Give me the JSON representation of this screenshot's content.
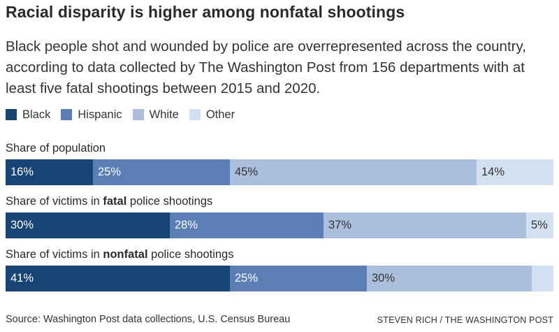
{
  "title": "Racial disparity is higher among nonfatal shootings",
  "subtitle": "Black people shot and wounded by police are overrepresented across the country, according to data collected by The Washington Post from 156 departments with at least five fatal shootings between 2015 and 2020.",
  "footer": {
    "source": "Source: Washington Post data collections, U.S. Census Bureau",
    "credit": "STEVEN RICH / THE WASHINGTON POST"
  },
  "chart_data": {
    "type": "bar",
    "orientation": "horizontal-stacked-100",
    "title": "Racial disparity is higher among nonfatal shootings",
    "xlabel": "",
    "ylabel": "",
    "xlim": [
      0,
      100
    ],
    "grid": false,
    "legend_position": "top-left",
    "legend": [
      {
        "name": "Black",
        "color": "#164574"
      },
      {
        "name": "Hispanic",
        "color": "#5b7fb4"
      },
      {
        "name": "White",
        "color": "#abbfdd"
      },
      {
        "name": "Other",
        "color": "#d2e0f0"
      }
    ],
    "categories": [
      {
        "label_pre": "Share of population",
        "label_bold": "",
        "label_post": ""
      },
      {
        "label_pre": "Share of victims in ",
        "label_bold": "fatal",
        "label_post": " police shootings"
      },
      {
        "label_pre": "Share of victims in ",
        "label_bold": "nonfatal",
        "label_post": " police shootings"
      }
    ],
    "series": [
      {
        "name": "Black",
        "values": [
          16,
          30,
          41
        ],
        "labels": [
          "16%",
          "30%",
          "41%"
        ]
      },
      {
        "name": "Hispanic",
        "values": [
          25,
          28,
          25
        ],
        "labels": [
          "25%",
          "28%",
          "25%"
        ]
      },
      {
        "name": "White",
        "values": [
          45,
          37,
          30
        ],
        "labels": [
          "45%",
          "37%",
          "30%"
        ]
      },
      {
        "name": "Other",
        "values": [
          14,
          5,
          4
        ],
        "labels": [
          "14%",
          "5%",
          ""
        ]
      }
    ],
    "label_colors": {
      "Black": "#ffffff",
      "Hispanic": "#ffffff",
      "White": "#333333",
      "Other": "#333333"
    }
  }
}
